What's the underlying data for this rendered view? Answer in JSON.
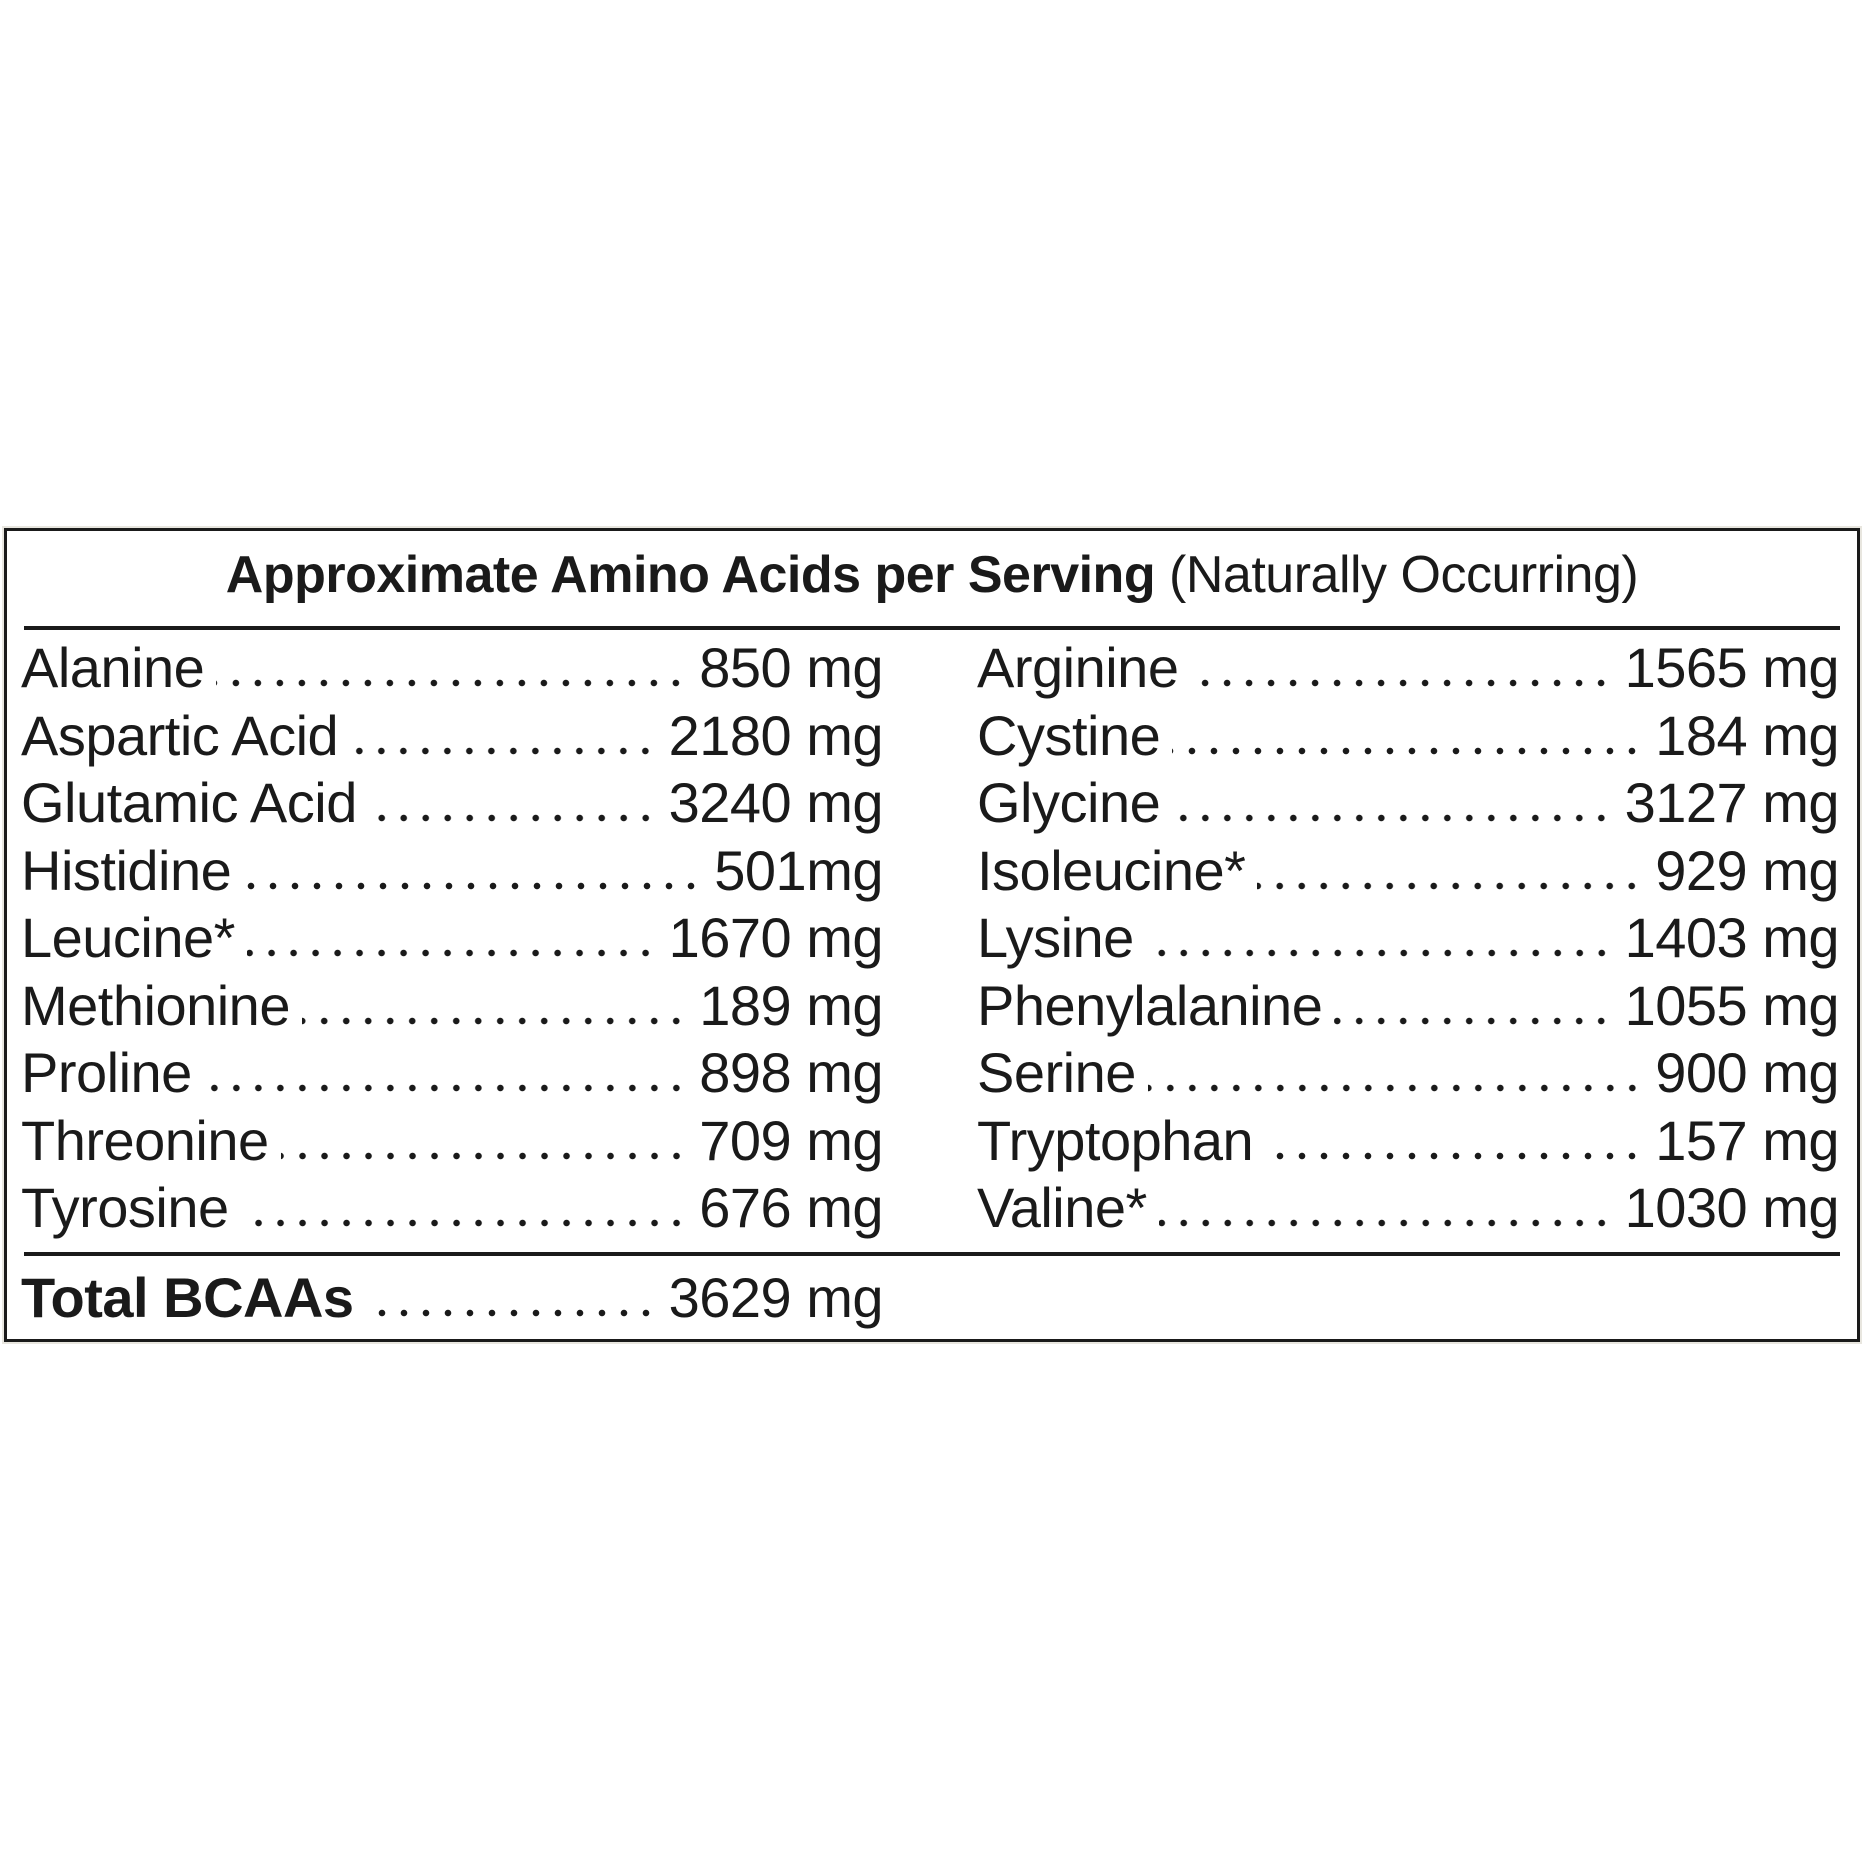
{
  "title": {
    "bold": "Approximate Amino Acids per Serving",
    "regular": "(Naturally Occurring)"
  },
  "rows": [
    [
      {
        "name": "Alanine",
        "amount": "850 mg"
      },
      {
        "name": "Arginine",
        "amount": "1565 mg"
      }
    ],
    [
      {
        "name": "Aspartic Acid",
        "amount": "2180 mg"
      },
      {
        "name": "Cystine",
        "amount": "184 mg"
      }
    ],
    [
      {
        "name": "Glutamic Acid",
        "amount": "3240 mg"
      },
      {
        "name": "Glycine",
        "amount": "3127 mg"
      }
    ],
    [
      {
        "name": "Histidine",
        "amount": "501mg"
      },
      {
        "name": "Isoleucine*",
        "amount": "929 mg"
      }
    ],
    [
      {
        "name": "Leucine*",
        "amount": "1670 mg"
      },
      {
        "name": "Lysine",
        "amount": "1403 mg"
      }
    ],
    [
      {
        "name": "Methionine",
        "amount": "189 mg"
      },
      {
        "name": "Phenylalanine",
        "amount": "1055 mg"
      }
    ],
    [
      {
        "name": "Proline",
        "amount": "898 mg"
      },
      {
        "name": "Serine",
        "amount": "900 mg"
      }
    ],
    [
      {
        "name": "Threonine",
        "amount": "709 mg"
      },
      {
        "name": "Tryptophan",
        "amount": "157 mg"
      }
    ],
    [
      {
        "name": "Tyrosine",
        "amount": "676 mg"
      },
      {
        "name": "Valine*",
        "amount": "1030 mg"
      }
    ]
  ],
  "total": {
    "name": "Total BCAAs",
    "amount": "3629 mg"
  }
}
